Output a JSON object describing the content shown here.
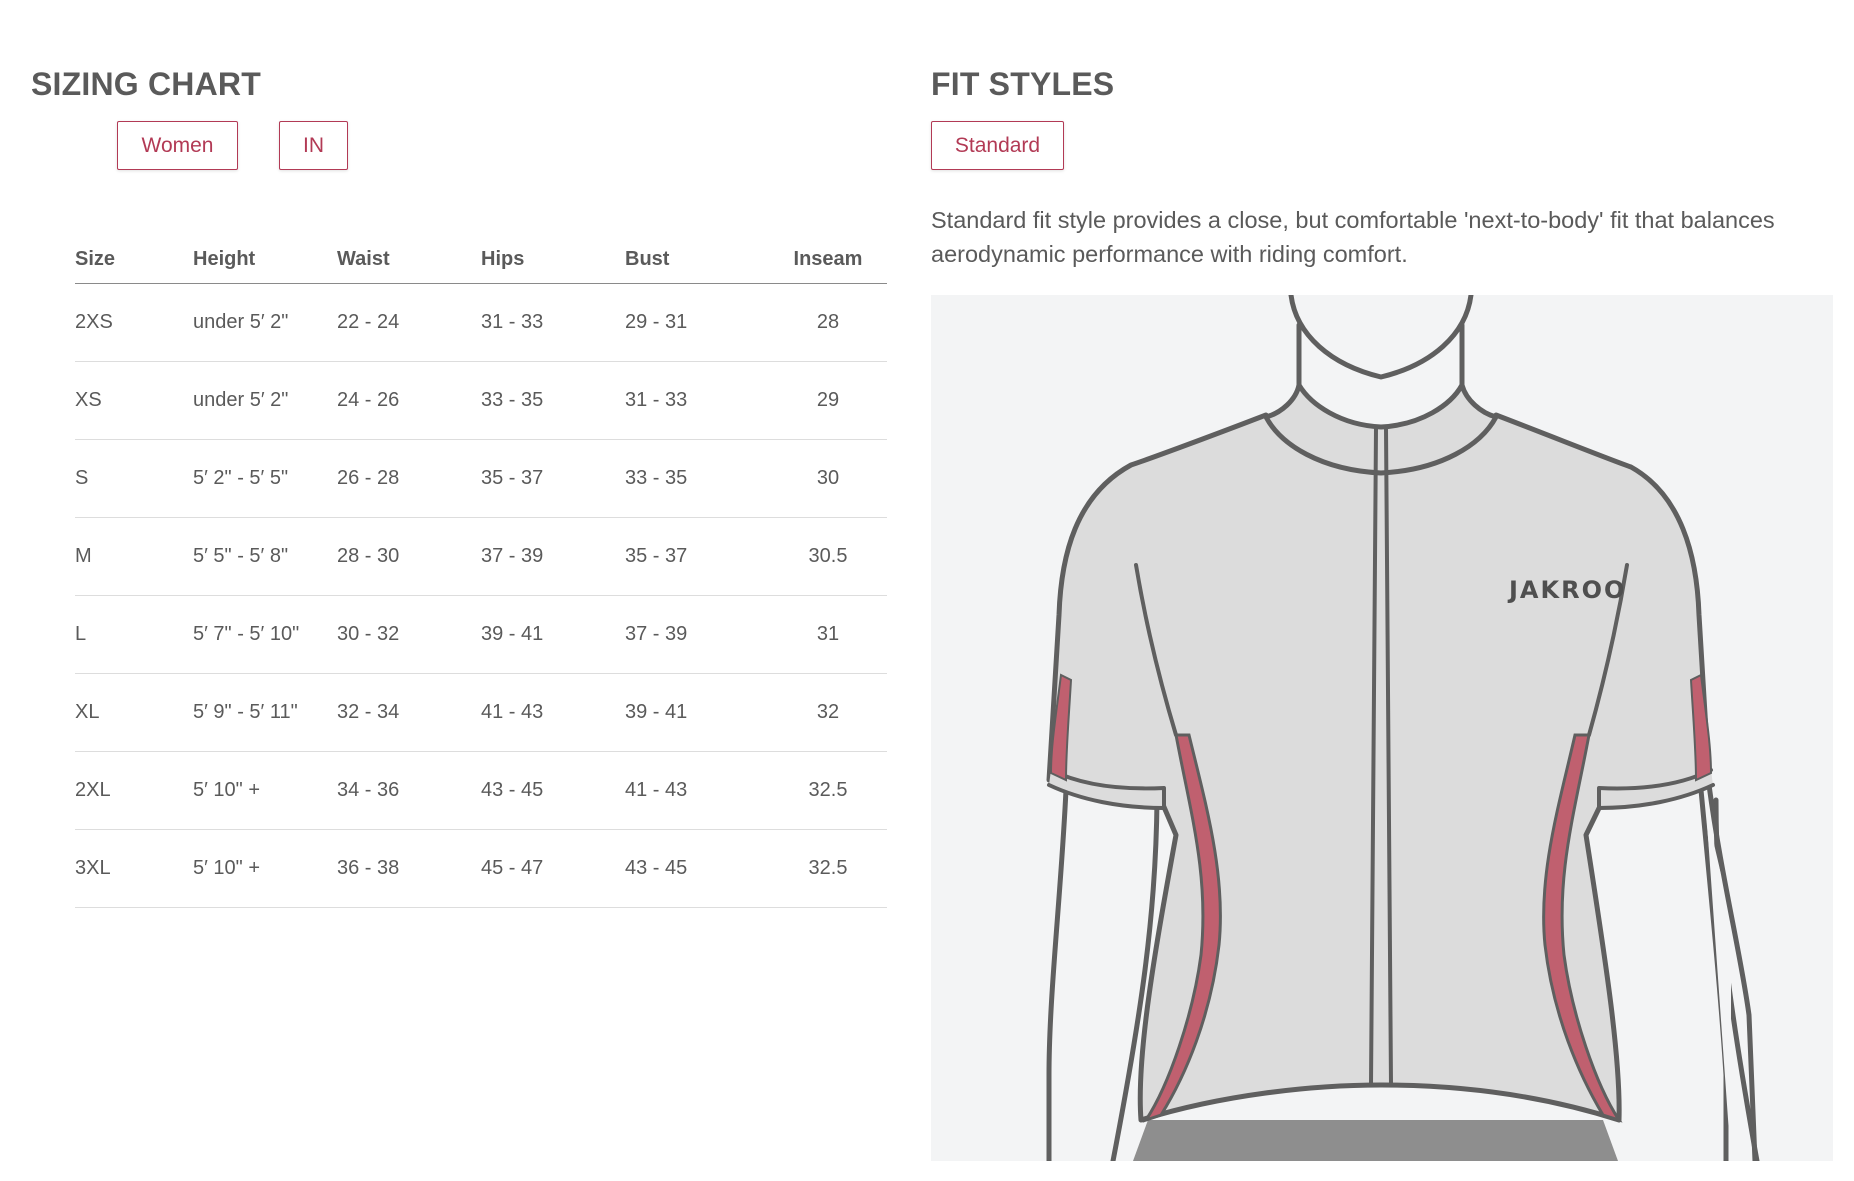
{
  "sizing": {
    "title": "SIZING CHART",
    "gender_button": "Women",
    "unit_button": "IN",
    "columns": [
      "Size",
      "Height",
      "Waist",
      "Hips",
      "Bust",
      "Inseam"
    ],
    "rows": [
      [
        "2XS",
        "under 5′ 2\"",
        "22 - 24",
        "31 - 33",
        "29 - 31",
        "28"
      ],
      [
        "XS",
        "under 5′ 2\"",
        "24 - 26",
        "33 - 35",
        "31 - 33",
        "29"
      ],
      [
        "S",
        "5′ 2\" - 5′ 5\"",
        "26 - 28",
        "35 - 37",
        "33 - 35",
        "30"
      ],
      [
        "M",
        "5′ 5\" - 5′ 8\"",
        "28 - 30",
        "37 - 39",
        "35 - 37",
        "30.5"
      ],
      [
        "L",
        "5′ 7\" - 5′ 10\"",
        "30 - 32",
        "39 - 41",
        "37 - 39",
        "31"
      ],
      [
        "XL",
        "5′ 9\" - 5′ 11\"",
        "32 - 34",
        "41 - 43",
        "39 - 41",
        "32"
      ],
      [
        "2XL",
        "5′ 10\" +",
        "34 - 36",
        "43 - 45",
        "41 - 43",
        "32.5"
      ],
      [
        "3XL",
        "5′ 10\" +",
        "36 - 38",
        "45 - 47",
        "43 - 45",
        "32.5"
      ]
    ]
  },
  "fit": {
    "title": "FIT STYLES",
    "style_button": "Standard",
    "description": "Standard fit style provides a close, but comfortable 'next-to-body' fit that balances aerodynamic performance with riding comfort.",
    "jersey_brand": "JAKROO"
  },
  "colors": {
    "accent": "#b23a55",
    "text": "#5a5a5a",
    "jersey_body": "#dcdcdc",
    "jersey_outline": "#5f5f5f",
    "side_panel": "#c0606f",
    "shorts": "#8e8e8e",
    "panel_bg": "#f3f4f5"
  }
}
